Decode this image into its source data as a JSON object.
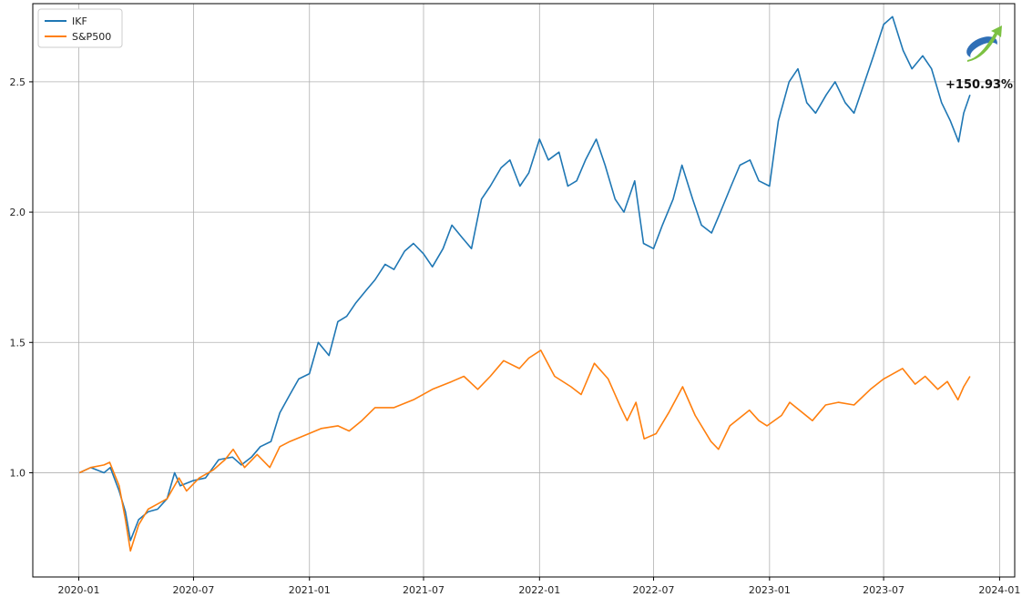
{
  "chart_data": {
    "type": "line",
    "title": "",
    "xlabel": "",
    "ylabel": "",
    "grid": true,
    "legend_position": "top-left",
    "x_ticks": [
      "2020-01",
      "2020-07",
      "2021-01",
      "2021-07",
      "2022-01",
      "2022-07",
      "2023-01",
      "2023-07",
      "2024-01"
    ],
    "y_ticks": [
      "1.0",
      "1.5",
      "2.0",
      "2.5"
    ],
    "xlim": [
      "2019-10-20",
      "2024-01-25"
    ],
    "ylim": [
      0.6,
      2.8
    ],
    "series": [
      {
        "name": "IKF",
        "color": "#1f77b4",
        "points": [
          [
            "2020-01-02",
            1.0
          ],
          [
            "2020-01-20",
            1.02
          ],
          [
            "2020-02-10",
            1.0
          ],
          [
            "2020-02-20",
            1.02
          ],
          [
            "2020-03-05",
            0.93
          ],
          [
            "2020-03-15",
            0.85
          ],
          [
            "2020-03-23",
            0.74
          ],
          [
            "2020-04-05",
            0.82
          ],
          [
            "2020-04-20",
            0.85
          ],
          [
            "2020-05-05",
            0.86
          ],
          [
            "2020-05-20",
            0.9
          ],
          [
            "2020-06-01",
            1.0
          ],
          [
            "2020-06-10",
            0.95
          ],
          [
            "2020-07-01",
            0.97
          ],
          [
            "2020-07-20",
            0.98
          ],
          [
            "2020-08-10",
            1.05
          ],
          [
            "2020-09-01",
            1.06
          ],
          [
            "2020-09-15",
            1.03
          ],
          [
            "2020-10-01",
            1.06
          ],
          [
            "2020-10-15",
            1.1
          ],
          [
            "2020-11-01",
            1.12
          ],
          [
            "2020-11-15",
            1.23
          ],
          [
            "2020-12-01",
            1.3
          ],
          [
            "2020-12-15",
            1.36
          ],
          [
            "2021-01-01",
            1.38
          ],
          [
            "2021-01-15",
            1.5
          ],
          [
            "2021-02-01",
            1.45
          ],
          [
            "2021-02-15",
            1.58
          ],
          [
            "2021-03-01",
            1.6
          ],
          [
            "2021-03-15",
            1.65
          ],
          [
            "2021-04-01",
            1.7
          ],
          [
            "2021-04-15",
            1.74
          ],
          [
            "2021-05-01",
            1.8
          ],
          [
            "2021-05-15",
            1.78
          ],
          [
            "2021-06-01",
            1.85
          ],
          [
            "2021-06-15",
            1.88
          ],
          [
            "2021-07-01",
            1.84
          ],
          [
            "2021-07-15",
            1.79
          ],
          [
            "2021-08-01",
            1.86
          ],
          [
            "2021-08-15",
            1.95
          ],
          [
            "2021-09-01",
            1.9
          ],
          [
            "2021-09-15",
            1.86
          ],
          [
            "2021-10-01",
            2.05
          ],
          [
            "2021-10-15",
            2.1
          ],
          [
            "2021-11-01",
            2.17
          ],
          [
            "2021-11-15",
            2.2
          ],
          [
            "2021-12-01",
            2.1
          ],
          [
            "2021-12-15",
            2.15
          ],
          [
            "2022-01-01",
            2.28
          ],
          [
            "2022-01-15",
            2.2
          ],
          [
            "2022-02-01",
            2.23
          ],
          [
            "2022-02-15",
            2.1
          ],
          [
            "2022-03-01",
            2.12
          ],
          [
            "2022-03-15",
            2.2
          ],
          [
            "2022-04-01",
            2.28
          ],
          [
            "2022-04-15",
            2.18
          ],
          [
            "2022-05-01",
            2.05
          ],
          [
            "2022-05-15",
            2.0
          ],
          [
            "2022-06-01",
            2.12
          ],
          [
            "2022-06-15",
            1.88
          ],
          [
            "2022-07-01",
            1.86
          ],
          [
            "2022-07-15",
            1.95
          ],
          [
            "2022-08-01",
            2.05
          ],
          [
            "2022-08-15",
            2.18
          ],
          [
            "2022-09-01",
            2.05
          ],
          [
            "2022-09-15",
            1.95
          ],
          [
            "2022-10-01",
            1.92
          ],
          [
            "2022-10-15",
            2.0
          ],
          [
            "2022-11-01",
            2.1
          ],
          [
            "2022-11-15",
            2.18
          ],
          [
            "2022-12-01",
            2.2
          ],
          [
            "2022-12-15",
            2.12
          ],
          [
            "2023-01-01",
            2.1
          ],
          [
            "2023-01-15",
            2.35
          ],
          [
            "2023-02-01",
            2.5
          ],
          [
            "2023-02-15",
            2.55
          ],
          [
            "2023-03-01",
            2.42
          ],
          [
            "2023-03-15",
            2.38
          ],
          [
            "2023-04-01",
            2.45
          ],
          [
            "2023-04-15",
            2.5
          ],
          [
            "2023-05-01",
            2.42
          ],
          [
            "2023-05-15",
            2.38
          ],
          [
            "2023-06-01",
            2.5
          ],
          [
            "2023-06-15",
            2.6
          ],
          [
            "2023-07-01",
            2.72
          ],
          [
            "2023-07-15",
            2.75
          ],
          [
            "2023-08-01",
            2.62
          ],
          [
            "2023-08-15",
            2.55
          ],
          [
            "2023-09-01",
            2.6
          ],
          [
            "2023-09-15",
            2.55
          ],
          [
            "2023-10-01",
            2.42
          ],
          [
            "2023-10-15",
            2.35
          ],
          [
            "2023-10-28",
            2.27
          ],
          [
            "2023-11-05",
            2.38
          ],
          [
            "2023-11-15",
            2.45
          ]
        ]
      },
      {
        "name": "S&P500",
        "color": "#ff7f0e",
        "points": [
          [
            "2020-01-02",
            1.0
          ],
          [
            "2020-01-20",
            1.02
          ],
          [
            "2020-02-10",
            1.03
          ],
          [
            "2020-02-19",
            1.04
          ],
          [
            "2020-03-05",
            0.95
          ],
          [
            "2020-03-15",
            0.82
          ],
          [
            "2020-03-23",
            0.7
          ],
          [
            "2020-04-05",
            0.8
          ],
          [
            "2020-04-20",
            0.86
          ],
          [
            "2020-05-05",
            0.88
          ],
          [
            "2020-05-20",
            0.9
          ],
          [
            "2020-06-08",
            0.98
          ],
          [
            "2020-06-20",
            0.93
          ],
          [
            "2020-07-10",
            0.98
          ],
          [
            "2020-08-01",
            1.01
          ],
          [
            "2020-08-20",
            1.05
          ],
          [
            "2020-09-02",
            1.09
          ],
          [
            "2020-09-20",
            1.02
          ],
          [
            "2020-10-10",
            1.07
          ],
          [
            "2020-10-30",
            1.02
          ],
          [
            "2020-11-15",
            1.1
          ],
          [
            "2020-12-01",
            1.12
          ],
          [
            "2020-12-31",
            1.15
          ],
          [
            "2021-01-20",
            1.17
          ],
          [
            "2021-02-15",
            1.18
          ],
          [
            "2021-03-05",
            1.16
          ],
          [
            "2021-03-25",
            1.2
          ],
          [
            "2021-04-15",
            1.25
          ],
          [
            "2021-05-15",
            1.25
          ],
          [
            "2021-06-15",
            1.28
          ],
          [
            "2021-07-15",
            1.32
          ],
          [
            "2021-08-15",
            1.35
          ],
          [
            "2021-09-03",
            1.37
          ],
          [
            "2021-09-25",
            1.32
          ],
          [
            "2021-10-15",
            1.37
          ],
          [
            "2021-11-05",
            1.43
          ],
          [
            "2021-11-30",
            1.4
          ],
          [
            "2021-12-15",
            1.44
          ],
          [
            "2022-01-03",
            1.47
          ],
          [
            "2022-01-25",
            1.37
          ],
          [
            "2022-02-20",
            1.33
          ],
          [
            "2022-03-08",
            1.3
          ],
          [
            "2022-03-29",
            1.42
          ],
          [
            "2022-04-20",
            1.36
          ],
          [
            "2022-05-10",
            1.25
          ],
          [
            "2022-05-20",
            1.2
          ],
          [
            "2022-06-03",
            1.27
          ],
          [
            "2022-06-16",
            1.13
          ],
          [
            "2022-07-05",
            1.15
          ],
          [
            "2022-07-25",
            1.23
          ],
          [
            "2022-08-16",
            1.33
          ],
          [
            "2022-09-05",
            1.22
          ],
          [
            "2022-09-30",
            1.12
          ],
          [
            "2022-10-12",
            1.09
          ],
          [
            "2022-10-30",
            1.18
          ],
          [
            "2022-11-30",
            1.24
          ],
          [
            "2022-12-15",
            1.2
          ],
          [
            "2022-12-28",
            1.18
          ],
          [
            "2023-01-20",
            1.22
          ],
          [
            "2023-02-02",
            1.27
          ],
          [
            "2023-03-10",
            1.2
          ],
          [
            "2023-03-31",
            1.26
          ],
          [
            "2023-04-20",
            1.27
          ],
          [
            "2023-05-15",
            1.26
          ],
          [
            "2023-06-10",
            1.32
          ],
          [
            "2023-07-01",
            1.36
          ],
          [
            "2023-07-31",
            1.4
          ],
          [
            "2023-08-20",
            1.34
          ],
          [
            "2023-09-05",
            1.37
          ],
          [
            "2023-09-25",
            1.32
          ],
          [
            "2023-10-10",
            1.35
          ],
          [
            "2023-10-27",
            1.28
          ],
          [
            "2023-11-05",
            1.33
          ],
          [
            "2023-11-15",
            1.37
          ]
        ]
      }
    ],
    "annotations": [
      {
        "text": "+150.93%"
      }
    ]
  },
  "colors": {
    "grid": "#b0b0b0",
    "axis": "#000000",
    "logo_blue": "#2f6fb6",
    "logo_green": "#7cc142"
  },
  "logo_icon": "growth-arrow-logo"
}
